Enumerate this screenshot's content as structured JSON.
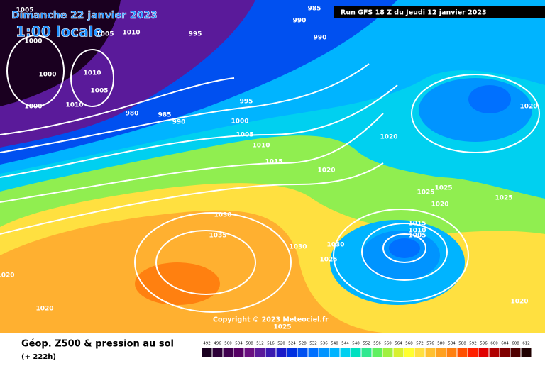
{
  "header": {
    "title": "Dimanche 22 janvier 2023",
    "time": "1:00 locale",
    "run": "Run GFS 18 Z du Jeudi 12 janvier 2023"
  },
  "map": {
    "copyright": "Copyright © 2023 Meteociel.fr",
    "isobar_labels": [
      1005,
      1000,
      1005,
      1010,
      995,
      985,
      990,
      990,
      1000,
      1010,
      1005,
      1010,
      1000,
      980,
      985,
      990,
      995,
      1000,
      1005,
      1010,
      1015,
      1020,
      1020,
      1020,
      1025,
      1025,
      1025,
      1020,
      1030,
      1035,
      1030,
      1030,
      1025,
      1015,
      1010,
      1005,
      1020,
      1020,
      1020,
      1025
    ]
  },
  "legend": {
    "title": "Géop. Z500 & pression au sol",
    "lead_time": "(+ 222h)",
    "scale": {
      "values": [
        492,
        496,
        500,
        504,
        508,
        512,
        516,
        520,
        524,
        528,
        532,
        536,
        540,
        544,
        548,
        552,
        556,
        560,
        564,
        568,
        572,
        576,
        580,
        584,
        588,
        592,
        596,
        600,
        604,
        608,
        612
      ],
      "colors": [
        "#1a0020",
        "#2d0038",
        "#40004f",
        "#550064",
        "#6a1080",
        "#5a1a9a",
        "#3a1ab0",
        "#1a1ac8",
        "#0030e0",
        "#0050f0",
        "#0070ff",
        "#0094ff",
        "#00b4ff",
        "#00d0f0",
        "#00e0c0",
        "#30e890",
        "#60f060",
        "#a0f040",
        "#d8f030",
        "#ffff30",
        "#ffe040",
        "#ffc030",
        "#ffa020",
        "#ff8010",
        "#ff5000",
        "#ff2000",
        "#e00000",
        "#b00000",
        "#800000",
        "#500000",
        "#200000"
      ]
    }
  }
}
